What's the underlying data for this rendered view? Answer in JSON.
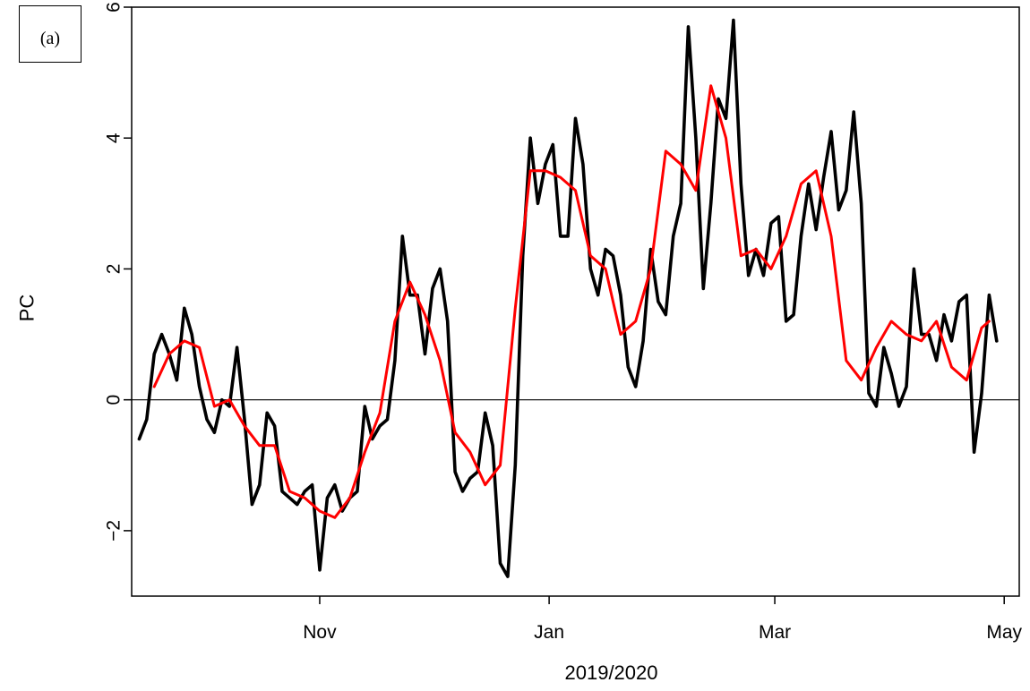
{
  "panel_label": "(a)",
  "chart_data": {
    "type": "line",
    "xlabel": "2019/2020",
    "ylabel": "PC",
    "x_range": [
      "2019-09-12",
      "2020-05-05"
    ],
    "ylim": [
      -3.0,
      6.0
    ],
    "x_ticks": [
      {
        "label": "Nov",
        "date": "2019-11-01"
      },
      {
        "label": "Jan",
        "date": "2020-01-01"
      },
      {
        "label": "Mar",
        "date": "2020-03-01"
      },
      {
        "label": "May",
        "date": "2020-05-01"
      }
    ],
    "y_ticks": [
      {
        "label": "−2",
        "value": -2
      },
      {
        "label": "0",
        "value": 0
      },
      {
        "label": "2",
        "value": 2
      },
      {
        "label": "4",
        "value": 4
      },
      {
        "label": "6",
        "value": 6
      }
    ],
    "reference_line": 0,
    "colors": {
      "raw": "#000000",
      "smoothed": "#ff0000"
    },
    "series": [
      {
        "key": "raw",
        "x": [
          "2019-09-14",
          "2019-09-16",
          "2019-09-18",
          "2019-09-20",
          "2019-09-22",
          "2019-09-24",
          "2019-09-26",
          "2019-09-28",
          "2019-09-30",
          "2019-10-02",
          "2019-10-04",
          "2019-10-06",
          "2019-10-08",
          "2019-10-10",
          "2019-10-12",
          "2019-10-14",
          "2019-10-16",
          "2019-10-18",
          "2019-10-20",
          "2019-10-22",
          "2019-10-24",
          "2019-10-26",
          "2019-10-28",
          "2019-10-30",
          "2019-11-01",
          "2019-11-03",
          "2019-11-05",
          "2019-11-07",
          "2019-11-09",
          "2019-11-11",
          "2019-11-13",
          "2019-11-15",
          "2019-11-17",
          "2019-11-19",
          "2019-11-21",
          "2019-11-23",
          "2019-11-25",
          "2019-11-27",
          "2019-11-29",
          "2019-12-01",
          "2019-12-03",
          "2019-12-05",
          "2019-12-07",
          "2019-12-09",
          "2019-12-11",
          "2019-12-13",
          "2019-12-15",
          "2019-12-17",
          "2019-12-19",
          "2019-12-21",
          "2019-12-23",
          "2019-12-25",
          "2019-12-27",
          "2019-12-29",
          "2019-12-31",
          "2020-01-02",
          "2020-01-04",
          "2020-01-06",
          "2020-01-08",
          "2020-01-10",
          "2020-01-12",
          "2020-01-14",
          "2020-01-16",
          "2020-01-18",
          "2020-01-20",
          "2020-01-22",
          "2020-01-24",
          "2020-01-26",
          "2020-01-28",
          "2020-01-30",
          "2020-02-01",
          "2020-02-03",
          "2020-02-05",
          "2020-02-07",
          "2020-02-09",
          "2020-02-11",
          "2020-02-13",
          "2020-02-15",
          "2020-02-17",
          "2020-02-19",
          "2020-02-21",
          "2020-02-23",
          "2020-02-25",
          "2020-02-27",
          "2020-02-29",
          "2020-03-02",
          "2020-03-04",
          "2020-03-06",
          "2020-03-08",
          "2020-03-10",
          "2020-03-12",
          "2020-03-14",
          "2020-03-16",
          "2020-03-18",
          "2020-03-20",
          "2020-03-22",
          "2020-03-24",
          "2020-03-26",
          "2020-03-28",
          "2020-03-30",
          "2020-04-01",
          "2020-04-03",
          "2020-04-05",
          "2020-04-07",
          "2020-04-09",
          "2020-04-11",
          "2020-04-13",
          "2020-04-15",
          "2020-04-17",
          "2020-04-19",
          "2020-04-21",
          "2020-04-23",
          "2020-04-25",
          "2020-04-27",
          "2020-04-29"
        ],
        "values": [
          -0.6,
          -0.3,
          0.7,
          1.0,
          0.7,
          0.3,
          1.4,
          1.0,
          0.2,
          -0.3,
          -0.5,
          0.0,
          -0.1,
          0.8,
          -0.3,
          -1.6,
          -1.3,
          -0.2,
          -0.4,
          -1.4,
          -1.5,
          -1.6,
          -1.4,
          -1.3,
          -2.6,
          -1.5,
          -1.3,
          -1.7,
          -1.5,
          -1.4,
          -0.1,
          -0.6,
          -0.4,
          -0.3,
          0.6,
          2.5,
          1.6,
          1.6,
          0.7,
          1.7,
          2.0,
          1.2,
          -1.1,
          -1.4,
          -1.2,
          -1.1,
          -0.2,
          -0.7,
          -2.5,
          -2.7,
          -1.0,
          2.2,
          4.0,
          3.0,
          3.6,
          3.9,
          2.5,
          2.5,
          4.3,
          3.6,
          2.0,
          1.6,
          2.3,
          2.2,
          1.6,
          0.5,
          0.2,
          0.9,
          2.3,
          1.5,
          1.3,
          2.5,
          3.0,
          5.7,
          4.0,
          1.7,
          3.0,
          4.6,
          4.3,
          5.8,
          3.3,
          1.9,
          2.3,
          1.9,
          2.7,
          2.8,
          1.2,
          1.3,
          2.5,
          3.3,
          2.6,
          3.4,
          4.1,
          2.9,
          3.2,
          4.4,
          3.0,
          0.1,
          -0.1,
          0.8,
          0.4,
          -0.1,
          0.2,
          2.0,
          1.0,
          1.0,
          0.6,
          1.3,
          0.9,
          1.5,
          1.6,
          -0.8,
          0.1,
          1.6,
          0.9
        ]
      },
      {
        "key": "smoothed",
        "x": [
          "2019-09-18",
          "2019-09-22",
          "2019-09-26",
          "2019-09-30",
          "2019-10-04",
          "2019-10-08",
          "2019-10-12",
          "2019-10-16",
          "2019-10-20",
          "2019-10-24",
          "2019-10-28",
          "2019-11-01",
          "2019-11-05",
          "2019-11-09",
          "2019-11-13",
          "2019-11-17",
          "2019-11-21",
          "2019-11-25",
          "2019-11-29",
          "2019-12-03",
          "2019-12-07",
          "2019-12-11",
          "2019-12-15",
          "2019-12-19",
          "2019-12-23",
          "2019-12-27",
          "2019-12-31",
          "2020-01-04",
          "2020-01-08",
          "2020-01-12",
          "2020-01-16",
          "2020-01-20",
          "2020-01-24",
          "2020-01-28",
          "2020-02-01",
          "2020-02-05",
          "2020-02-09",
          "2020-02-13",
          "2020-02-17",
          "2020-02-21",
          "2020-02-25",
          "2020-02-29",
          "2020-03-04",
          "2020-03-08",
          "2020-03-12",
          "2020-03-16",
          "2020-03-20",
          "2020-03-24",
          "2020-03-28",
          "2020-04-01",
          "2020-04-05",
          "2020-04-09",
          "2020-04-13",
          "2020-04-17",
          "2020-04-21",
          "2020-04-25",
          "2020-04-27"
        ],
        "values": [
          0.2,
          0.7,
          0.9,
          0.8,
          -0.1,
          0.0,
          -0.4,
          -0.7,
          -0.7,
          -1.4,
          -1.5,
          -1.7,
          -1.8,
          -1.5,
          -0.8,
          -0.2,
          1.2,
          1.8,
          1.3,
          0.6,
          -0.5,
          -0.8,
          -1.3,
          -1.0,
          1.4,
          3.5,
          3.5,
          3.4,
          3.2,
          2.2,
          2.0,
          1.0,
          1.2,
          2.0,
          3.8,
          3.6,
          3.2,
          4.8,
          4.0,
          2.2,
          2.3,
          2.0,
          2.5,
          3.3,
          3.5,
          2.5,
          0.6,
          0.3,
          0.8,
          1.2,
          1.0,
          0.9,
          1.2,
          0.5,
          0.3,
          1.1,
          1.2
        ]
      }
    ]
  }
}
